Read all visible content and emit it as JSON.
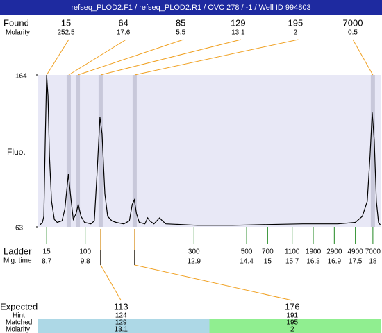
{
  "header": {
    "title": "refseq_PLOD2.F1 / refseq_PLOD2.R1 / OVC 278 / -1 / Well ID 994803"
  },
  "found": {
    "label": "Found",
    "molarity_label": "Molarity",
    "sizes": [
      15,
      64,
      85,
      129,
      195,
      7000
    ],
    "molarity": [
      252.5,
      17.6,
      5.5,
      13.1,
      2,
      0.5
    ],
    "times": [
      8.7,
      9.33,
      9.59,
      10.24,
      11.21,
      18.0
    ]
  },
  "chart_data": {
    "type": "line",
    "y_label": "Fluo.",
    "color": "#000000",
    "plot_color": "#e8e8f6",
    "band_color": "#c8c8da",
    "xlim": [
      8.46,
      18.22
    ],
    "ylim": [
      63,
      164
    ],
    "yticks": [
      63,
      164
    ],
    "x": [
      8.5,
      8.58,
      8.62,
      8.66,
      8.7,
      8.74,
      8.78,
      8.84,
      8.92,
      9.0,
      9.14,
      9.22,
      9.32,
      9.4,
      9.46,
      9.54,
      9.6,
      9.68,
      9.78,
      9.96,
      10.06,
      10.14,
      10.22,
      10.28,
      10.36,
      10.44,
      10.56,
      10.68,
      10.9,
      11.06,
      11.14,
      11.2,
      11.26,
      11.34,
      11.5,
      11.58,
      11.64,
      11.76,
      11.92,
      12.0,
      12.1,
      13.0,
      14.0,
      15.0,
      16.0,
      17.0,
      17.5,
      17.7,
      17.84,
      17.92,
      17.98,
      18.04,
      18.1,
      18.16,
      18.22
    ],
    "values": [
      64,
      66,
      70,
      120,
      164,
      150,
      110,
      80,
      68,
      66,
      67,
      75,
      98,
      80,
      68,
      72,
      78,
      70,
      66,
      65,
      67,
      100,
      136,
      125,
      85,
      70,
      67,
      66,
      65,
      67,
      78,
      81,
      72,
      66,
      65,
      69,
      67,
      65,
      69,
      67,
      65,
      64,
      64,
      64.5,
      65,
      65,
      66,
      70,
      80,
      110,
      139,
      120,
      80,
      66,
      64
    ]
  },
  "ladder": {
    "label": "Ladder",
    "time_label": "Mig. time",
    "color": "#228822",
    "sizes": [
      15,
      100,
      300,
      500,
      700,
      1100,
      1900,
      2900,
      4900,
      7000
    ],
    "times": [
      8.7,
      9.8,
      12.9,
      14.4,
      15,
      15.7,
      16.3,
      16.9,
      17.5,
      18
    ]
  },
  "expected": {
    "label": "Expected",
    "hint_label": "Hint",
    "matched_label": "Matched",
    "molarity_label": "Molarity",
    "sizes": [
      113,
      176
    ],
    "hint": [
      124,
      191
    ],
    "matched": [
      129,
      195
    ],
    "molarity": [
      13.1,
      2
    ],
    "colors": [
      "#add8e6",
      "#90ee90"
    ]
  },
  "link_color": "#f0a020"
}
